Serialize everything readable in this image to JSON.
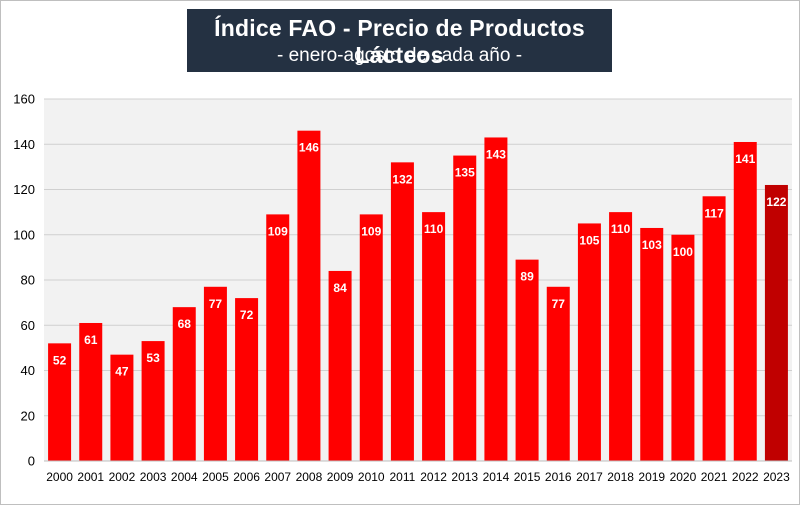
{
  "chart_data": {
    "type": "bar",
    "title": "Índice FAO - Precio de Productos Lácteos",
    "subtitle": "- enero-agosto de cada año -",
    "xlabel": "",
    "ylabel": "",
    "categories": [
      "2000",
      "2001",
      "2002",
      "2003",
      "2004",
      "2005",
      "2006",
      "2007",
      "2008",
      "2009",
      "2010",
      "2011",
      "2012",
      "2013",
      "2014",
      "2015",
      "2016",
      "2017",
      "2018",
      "2019",
      "2020",
      "2021",
      "2022",
      "2023"
    ],
    "values": [
      52,
      61,
      47,
      53,
      68,
      77,
      72,
      109,
      146,
      84,
      109,
      132,
      110,
      135,
      143,
      89,
      77,
      105,
      110,
      103,
      100,
      117,
      141,
      122
    ],
    "data_labels": [
      "52",
      "61",
      "47",
      "53",
      "68",
      "77",
      "72",
      "109",
      "146",
      "84",
      "109",
      "132",
      "110",
      "135",
      "143",
      "89",
      "77",
      "105",
      "110",
      "103",
      "100",
      "117",
      "141",
      "122"
    ],
    "ylim": [
      0,
      160
    ],
    "yticks": [
      "0",
      "20",
      "40",
      "60",
      "80",
      "100",
      "120",
      "140",
      "160"
    ],
    "grid": true,
    "legend": "none",
    "colors": {
      "bar": "#ff0000",
      "highlight_bar": "#c00000",
      "grid": "#d0d0d0",
      "plot_background": "#f2f2f2",
      "label_text": "#ffffff",
      "title_background": "#243142"
    },
    "highlight_category": "2023"
  }
}
